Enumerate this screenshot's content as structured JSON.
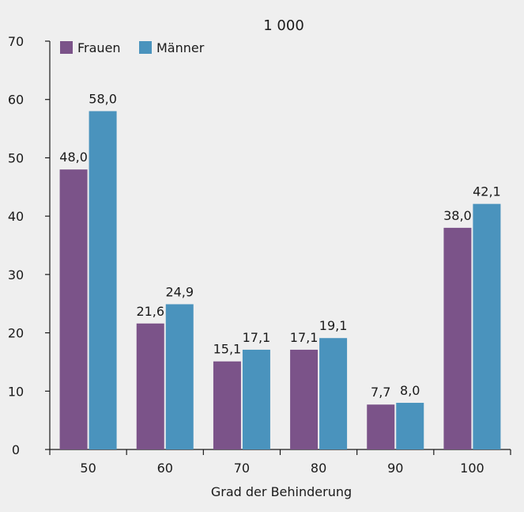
{
  "chart_data": {
    "type": "bar",
    "title": "1 000",
    "xlabel": "Grad der Behinderung",
    "ylabel": "",
    "ylim": [
      0,
      70
    ],
    "yticks": [
      0,
      10,
      20,
      30,
      40,
      50,
      60,
      70
    ],
    "categories": [
      "50",
      "60",
      "70",
      "80",
      "90",
      "100"
    ],
    "series": [
      {
        "name": "Frauen",
        "color": "#7b5389",
        "values": [
          48.0,
          21.6,
          15.1,
          17.1,
          7.7,
          38.0
        ],
        "labels": [
          "48,0",
          "21,6",
          "15,1",
          "17,1",
          "7,7",
          "38,0"
        ]
      },
      {
        "name": "Männer",
        "color": "#4a93bd",
        "values": [
          58.0,
          24.9,
          17.1,
          19.1,
          8.0,
          42.1
        ],
        "labels": [
          "58,0",
          "24,9",
          "17,1",
          "19,1",
          "8,0",
          "42,1"
        ]
      }
    ],
    "grid": false,
    "legend_position": "top-left"
  }
}
